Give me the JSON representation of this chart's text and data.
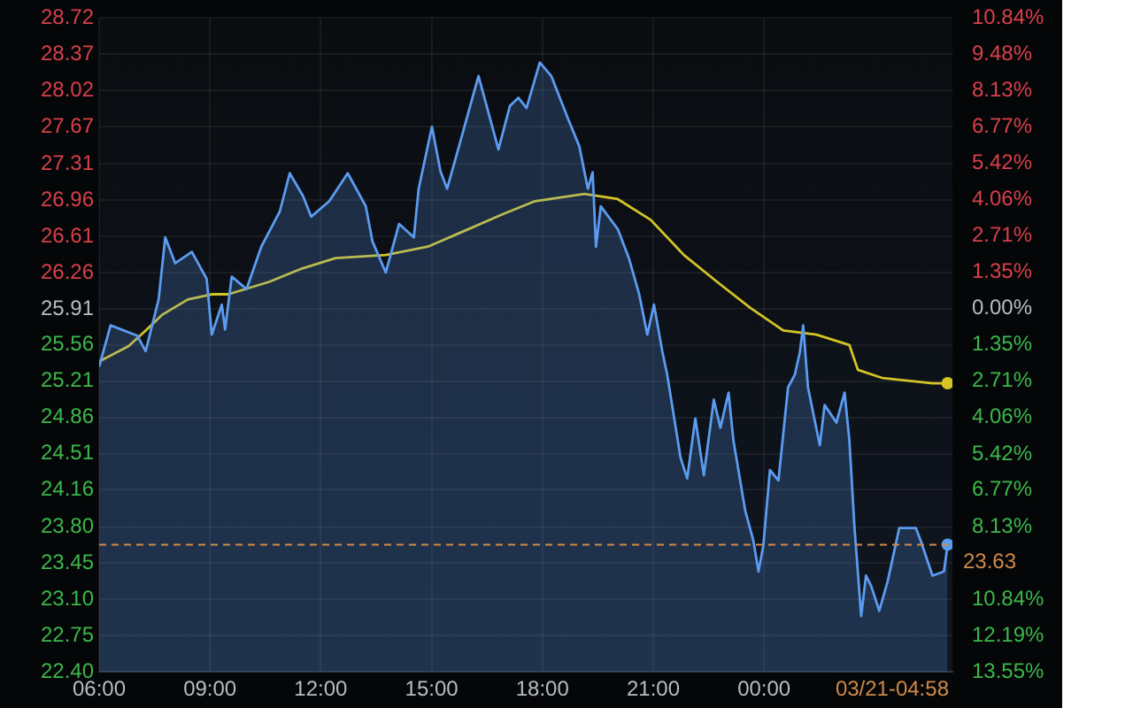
{
  "chart_data": {
    "type": "line",
    "xlim": [
      6,
      29.1
    ],
    "xticks": [
      {
        "value": 6,
        "label": "06:00"
      },
      {
        "value": 9,
        "label": "09:00"
      },
      {
        "value": 12,
        "label": "12:00"
      },
      {
        "value": 15,
        "label": "15:00"
      },
      {
        "value": 18,
        "label": "18:00"
      },
      {
        "value": 21,
        "label": "21:00"
      },
      {
        "value": 24,
        "label": "00:00"
      }
    ],
    "ylim": [
      22.4,
      28.72
    ],
    "yticks": [
      {
        "value": 22.4,
        "label": "22.40"
      },
      22.75,
      {
        "value": 23.1,
        "label": "23.10"
      },
      23.45,
      {
        "value": 23.8,
        "label": "23.80"
      },
      24.16,
      24.51,
      24.86,
      25.21,
      25.56,
      25.91,
      26.26,
      26.61,
      26.96,
      27.31,
      27.67,
      28.02,
      28.37,
      28.72
    ],
    "y2lim": [
      -13.55,
      10.84
    ],
    "y2ticks": [
      {
        "value": -13.55,
        "label": "13.55%"
      },
      {
        "value": -12.19,
        "label": "12.19%"
      },
      {
        "value": -10.84,
        "label": "10.84%"
      },
      {
        "value": -8.13,
        "label": "8.13%"
      },
      {
        "value": -6.77,
        "label": "6.77%"
      },
      {
        "value": -5.42,
        "label": "5.42%"
      },
      {
        "value": -4.06,
        "label": "4.06%"
      },
      {
        "value": -2.71,
        "label": "2.71%"
      },
      {
        "value": -1.35,
        "label": "1.35%"
      },
      {
        "value": 0,
        "label": "0.00%"
      },
      {
        "value": 1.35,
        "label": "1.35%"
      },
      {
        "value": 2.71,
        "label": "2.71%"
      },
      {
        "value": 4.06,
        "label": "4.06%"
      },
      {
        "value": 5.42,
        "label": "5.42%"
      },
      {
        "value": 6.77,
        "label": "6.77%"
      },
      {
        "value": 8.13,
        "label": "8.13%"
      },
      {
        "value": 9.48,
        "label": "9.48%"
      },
      {
        "value": 10.84,
        "label": "10.84%"
      }
    ],
    "grid": true,
    "legend": false,
    "line_style": "solid",
    "ref_lines": [
      {
        "axis": "y",
        "value": 23.63,
        "label": "23.63",
        "color": "#d08a4a",
        "line_style": "dashed"
      }
    ],
    "annotations": [
      "03/21-04:58"
    ],
    "series": [
      {
        "color": "#5b9cf0",
        "type": "area",
        "x": [
          6.0,
          6.31,
          7.03,
          7.26,
          7.61,
          7.79,
          8.06,
          8.51,
          8.91,
          9.05,
          9.32,
          9.41,
          9.59,
          9.99,
          10.39,
          10.89,
          11.16,
          11.52,
          11.74,
          12.23,
          12.73,
          13.22,
          13.4,
          13.76,
          14.12,
          14.52,
          14.65,
          15.01,
          15.24,
          15.42,
          15.78,
          16.27,
          16.81,
          17.12,
          17.35,
          17.57,
          17.93,
          18.24,
          18.69,
          19.0,
          19.23,
          19.36,
          19.45,
          19.58,
          20.04,
          20.35,
          20.62,
          20.84,
          21.02,
          21.25,
          21.38,
          21.74,
          21.92,
          22.14,
          22.37,
          22.64,
          22.82,
          23.04,
          23.17,
          23.49,
          23.71,
          23.85,
          23.98,
          24.16,
          24.39,
          24.65,
          24.83,
          24.97,
          25.06,
          25.19,
          25.51,
          25.64,
          25.96,
          26.18,
          26.31,
          26.45,
          26.63,
          26.76,
          26.9,
          27.12,
          27.35,
          27.66,
          28.11,
          28.24,
          28.56,
          28.87,
          28.97
        ],
        "values": [
          25.35,
          25.75,
          25.65,
          25.5,
          26.0,
          26.6,
          26.35,
          26.46,
          26.2,
          25.66,
          25.95,
          25.71,
          26.22,
          26.1,
          26.51,
          26.85,
          27.22,
          27.0,
          26.8,
          26.95,
          27.22,
          26.9,
          26.56,
          26.26,
          26.73,
          26.6,
          27.07,
          27.67,
          27.24,
          27.07,
          27.53,
          28.16,
          27.45,
          27.87,
          27.95,
          27.85,
          28.29,
          28.16,
          27.75,
          27.48,
          27.07,
          27.23,
          26.51,
          26.9,
          26.68,
          26.39,
          26.05,
          25.66,
          25.95,
          25.49,
          25.27,
          24.47,
          24.27,
          24.85,
          24.3,
          25.03,
          24.76,
          25.1,
          24.64,
          23.96,
          23.67,
          23.37,
          23.62,
          24.35,
          24.25,
          25.15,
          25.27,
          25.49,
          25.75,
          25.15,
          24.59,
          24.98,
          24.81,
          25.1,
          24.64,
          23.79,
          22.94,
          23.33,
          23.23,
          22.99,
          23.28,
          23.79,
          23.79,
          23.67,
          23.33,
          23.37,
          23.63
        ]
      },
      {
        "color": "#d4c424",
        "x": [
          6.0,
          6.8,
          7.26,
          7.7,
          8.4,
          9.05,
          9.5,
          10.6,
          11.5,
          12.4,
          13.76,
          14.9,
          16.0,
          16.9,
          17.8,
          19.14,
          20.04,
          20.93,
          21.83,
          22.73,
          23.62,
          24.52,
          25.42,
          26.31,
          26.54,
          27.21,
          28.56,
          28.97
        ],
        "values": [
          25.4,
          25.55,
          25.7,
          25.85,
          26.0,
          26.05,
          26.05,
          26.17,
          26.3,
          26.4,
          26.43,
          26.51,
          26.68,
          26.82,
          26.95,
          27.02,
          26.97,
          26.77,
          26.43,
          26.17,
          25.92,
          25.7,
          25.66,
          25.56,
          25.32,
          25.24,
          25.19,
          25.19
        ]
      }
    ]
  }
}
